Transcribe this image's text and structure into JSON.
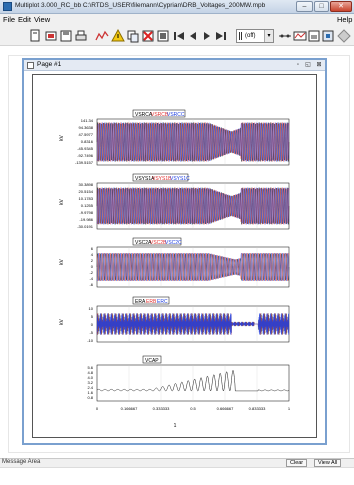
{
  "window": {
    "title": "Multiplot 3.000_RC_bb C:\\RTDS_USER\\filemann\\Cyprian\\DRB_Voltages_200MW.mpb",
    "minimize": "–",
    "maximize": "□",
    "close": "✕"
  },
  "menu": {
    "file": "File",
    "edit": "Edit",
    "view": "View",
    "help": "Help"
  },
  "toolbar": {
    "zoom_select_value": "(off)",
    "icons": [
      "new-page-icon",
      "open-file-icon",
      "save-icon",
      "print-icon",
      "plot-wizard-icon",
      "warning-icon",
      "copy-icon",
      "delete-icon",
      "image-icon",
      "first-icon",
      "previous-icon",
      "next-icon",
      "last-icon",
      "zoom-icon",
      "cursor-icon",
      "table-icon",
      "page-setup-icon",
      "settings-icon"
    ]
  },
  "document": {
    "page_title": "Page #1",
    "page_number": "1"
  },
  "colors": {
    "series_black": "#000000",
    "series_red": "#e03030",
    "series_blue": "#1f3fe0"
  },
  "plots": [
    {
      "legend": [
        "VSRCA",
        "VSRCB",
        "VSRCC"
      ],
      "ylabel": "kV",
      "yticks": [
        "141.34",
        "94.3638",
        "47.5977",
        "0.8316",
        "-45.9345",
        "-92.7496",
        "-139.5157"
      ]
    },
    {
      "legend": [
        "VSYS1A",
        "VSYS1B",
        "VSYS1C"
      ],
      "ylabel": "kV",
      "yticks": [
        "30.3898",
        "20.5154",
        "10.1783",
        "0.1255",
        "-9.9798",
        "-19.986",
        "-30.0191"
      ]
    },
    {
      "legend": [
        "VSC2A",
        "VSC2B",
        "VSC2C"
      ],
      "ylabel": "kV",
      "yticks": [
        "6",
        "4",
        "2",
        "0",
        "-2",
        "-4",
        "-6"
      ]
    },
    {
      "legend": [
        "ERA",
        "ERB",
        "ERC"
      ],
      "ylabel": "kV",
      "yticks": [
        "10",
        "5",
        "0",
        "-5",
        "-10"
      ]
    },
    {
      "legend": [
        "VCAP"
      ],
      "ylabel": "",
      "yticks": [
        "5.6",
        "4.8",
        "4.0",
        "3.2",
        "2.4",
        "1.6",
        "0.8"
      ]
    }
  ],
  "chart_data": {
    "type": "line",
    "x": [
      0,
      0.166667,
      0.333333,
      0.5,
      0.666667,
      0.833333,
      1
    ],
    "xticks": [
      "0",
      "0.166667",
      "0.333333",
      "0.5",
      "0.666667",
      "0.833333",
      "1"
    ]
  },
  "status": {
    "message": "Message Area",
    "clear": "Clear",
    "view_all": "View All"
  }
}
